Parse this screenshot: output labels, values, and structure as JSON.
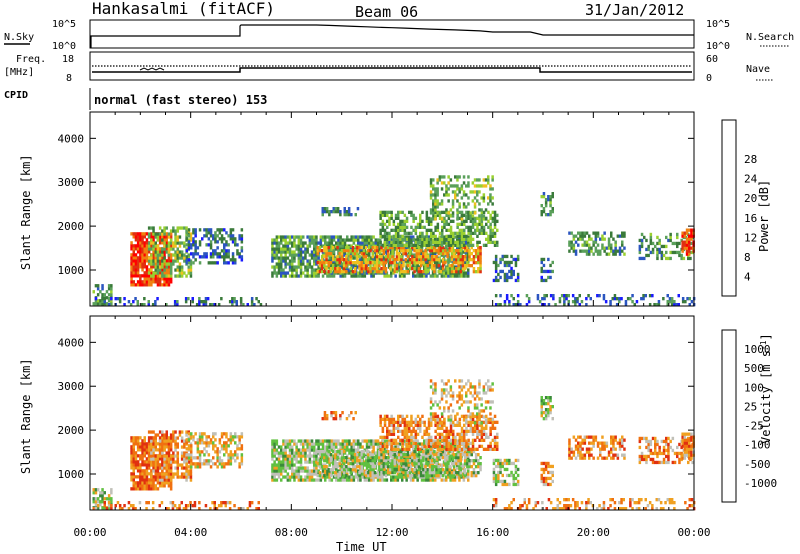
{
  "header": {
    "station": "Hankasalmi (fitACF)",
    "beam": "Beam 06",
    "date": "31/Jan/2012"
  },
  "strips": {
    "nsky_label": "N.Sky",
    "nsearch_label": "N.Search",
    "nsky_ticks": [
      "10^5",
      "10^0"
    ],
    "nsearch_ticks": [
      "10^5",
      "10^0"
    ],
    "freq_label_line1": "Freq.",
    "freq_label_line2": "[MHz]",
    "freq_ticks": [
      "18",
      "8"
    ],
    "nave_label": "Nave",
    "nave_ticks": [
      "60",
      "0"
    ],
    "cpid_label": "CPID",
    "cpid_text": "normal (fast stereo) 153"
  },
  "panels": {
    "ylabel": "Slant Range [km]",
    "xlabel": "Time UT",
    "yticks": [
      "1000",
      "2000",
      "3000",
      "4000"
    ],
    "xticks": [
      "00:00",
      "04:00",
      "08:00",
      "12:00",
      "16:00",
      "20:00",
      "00:00"
    ]
  },
  "power_scale": {
    "label": "Power [dB]",
    "ticks": [
      "4",
      "8",
      "12",
      "16",
      "20",
      "24",
      "28"
    ],
    "colors": [
      "#1a1aff",
      "#2b55c0",
      "#3a7a3a",
      "#5aa05a",
      "#9ad030",
      "#f0c020",
      "#f08010",
      "#e03010",
      "#ff0000"
    ]
  },
  "velocity_scale": {
    "label": "Velocity [m s^-1]",
    "ticks": [
      "1000",
      "500",
      "100",
      "25",
      "-25",
      "-100",
      "-500",
      "-1000"
    ],
    "colors": [
      "#2030c0",
      "#2a6fd0",
      "#3a8a3a",
      "#60c040",
      "#c0c0b8",
      "#f0a020",
      "#f07010",
      "#e03010",
      "#ff0000"
    ]
  },
  "chart_data": {
    "type": "heatmap",
    "title": "Hankasalmi (fitACF) Beam 06 31/Jan/2012",
    "xlabel": "Time UT",
    "ylabel": "Slant Range [km]",
    "xlim": [
      "00:00",
      "24:00"
    ],
    "ylim": [
      180,
      4600
    ],
    "series": [
      {
        "name": "Power [dB]",
        "range": [
          0,
          32
        ]
      },
      {
        "name": "Velocity [m s^-1]",
        "range": [
          -1000,
          1000
        ]
      }
    ]
  }
}
